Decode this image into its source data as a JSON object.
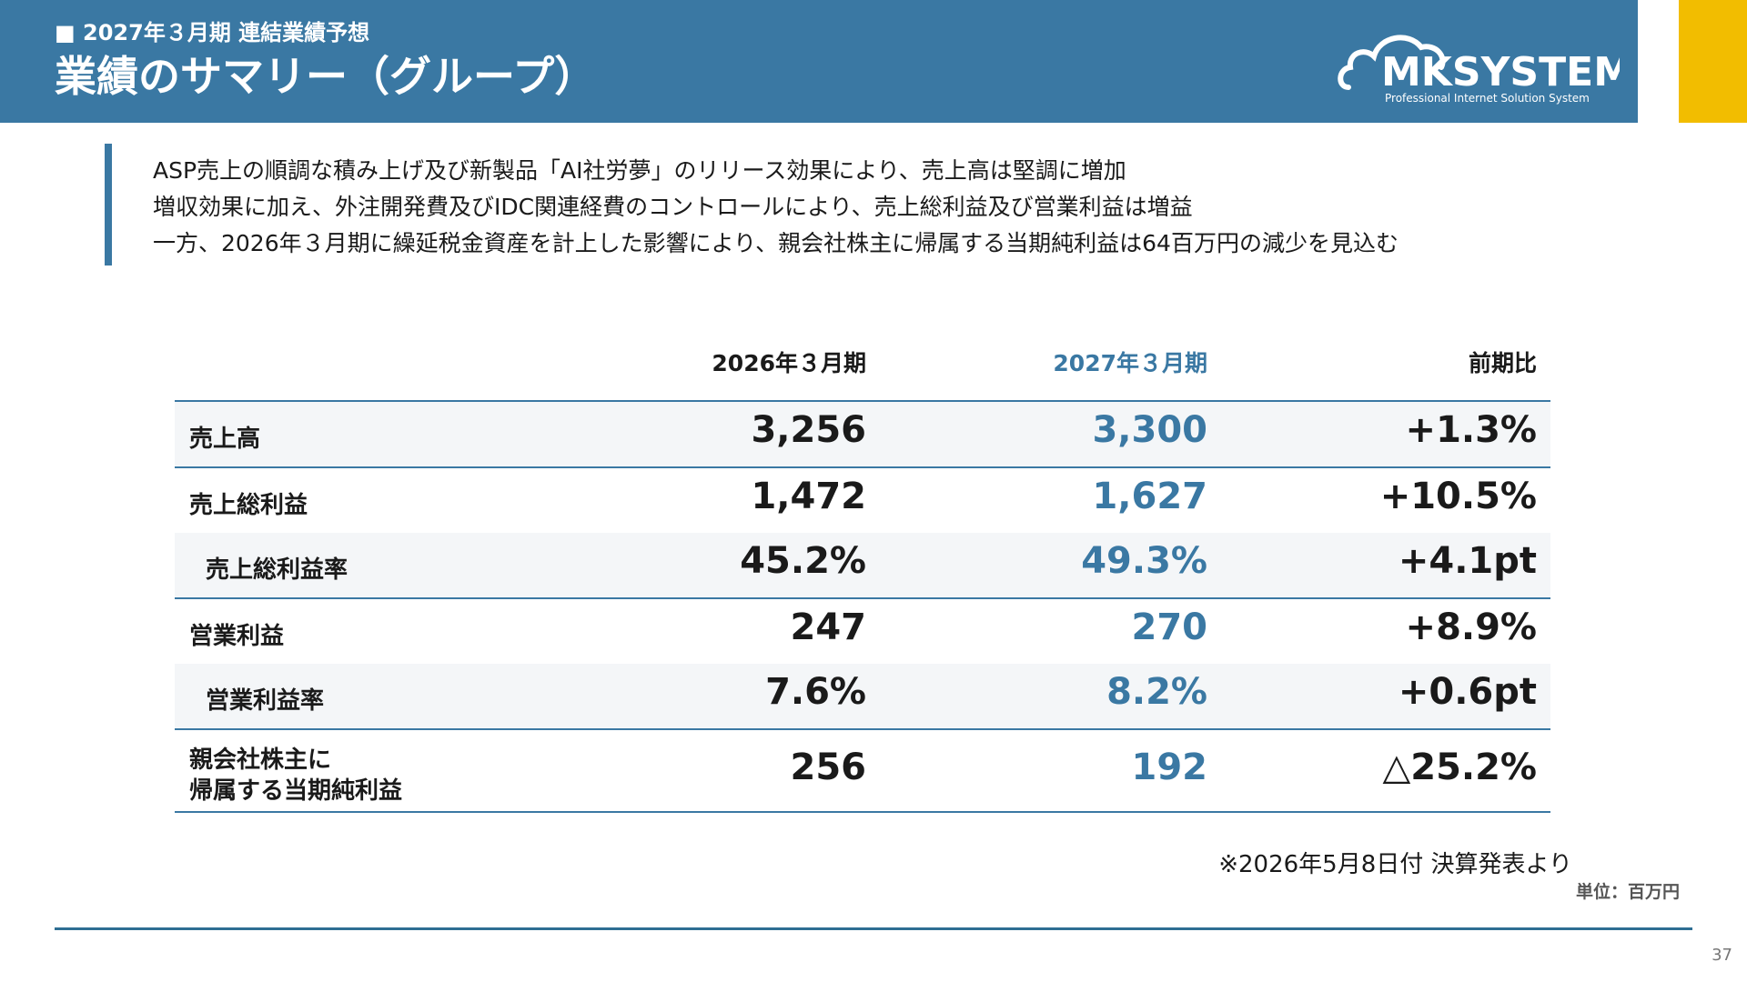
{
  "header": {
    "subtitle": "■ 2027年３月期 連結業績予想",
    "title": "業績のサマリー（グループ）",
    "brand": "MKSYSTEM",
    "tagline": "Professional Internet Solution System",
    "colors": {
      "header_bg": "#3a78a3",
      "accent": "#f2bd00",
      "forecast_text": "#3a78a3"
    }
  },
  "summary": {
    "lines": [
      "ASP売上の順調な積み上げ及び新製品「AI社労夢」のリリース効果により、売上高は堅調に増加",
      "増収効果に加え、外注開発費及びIDC関連経費のコントロールにより、売上総利益及び営業利益は増益",
      "一方、2026年３月期に繰延税金資産を計上した影響により、親会社株主に帰属する当期純利益は64百万円の減少を見込む"
    ]
  },
  "table": {
    "headers": [
      "2026年３月期",
      "2027年３月期",
      "前期比"
    ],
    "rows": [
      {
        "label": "売上高",
        "prior": "3,256",
        "forecast": "3,300",
        "change": "+1.3%"
      },
      {
        "label": "売上総利益",
        "prior": "1,472",
        "forecast": "1,627",
        "change": "+10.5%"
      },
      {
        "label": "売上総利益率",
        "prior": "45.2%",
        "forecast": "49.3%",
        "change": "+4.1pt"
      },
      {
        "label": "営業利益",
        "prior": "247",
        "forecast": "270",
        "change": "+8.9%"
      },
      {
        "label": "営業利益率",
        "prior": "7.6%",
        "forecast": "8.2%",
        "change": "+0.6pt"
      },
      {
        "label_line1": "親会社株主に",
        "label_line2": "帰属する当期純利益",
        "prior": "256",
        "forecast": "192",
        "change": "△25.2%"
      }
    ]
  },
  "footer": {
    "note": "※2026年5月8日付 決算発表より",
    "unit": "単位：百万円",
    "page_number": "37"
  }
}
